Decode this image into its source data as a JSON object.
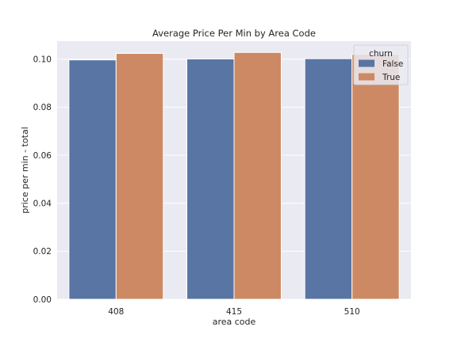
{
  "chart_data": {
    "type": "bar",
    "title": "Average Price Per Min by Area Code",
    "xlabel": "area code",
    "ylabel": "price per min - total",
    "categories": [
      "408",
      "415",
      "510"
    ],
    "ylim": [
      0,
      0.1075
    ],
    "yticks": [
      0.0,
      0.02,
      0.04,
      0.06,
      0.08,
      0.1
    ],
    "ytick_labels": [
      "0.00",
      "0.02",
      "0.04",
      "0.06",
      "0.08",
      "0.10"
    ],
    "grid": true,
    "legend": {
      "title": "churn",
      "placement": "top-right"
    },
    "series": [
      {
        "name": "False",
        "color": "#5875a4",
        "values": [
          0.0997,
          0.1001,
          0.1002
        ]
      },
      {
        "name": "True",
        "color": "#cc8963",
        "values": [
          0.1024,
          0.1028,
          0.102
        ]
      }
    ]
  },
  "colors": {
    "axes_background": "#eaeaf2",
    "grid": "#ffffff",
    "text": "#262626"
  }
}
